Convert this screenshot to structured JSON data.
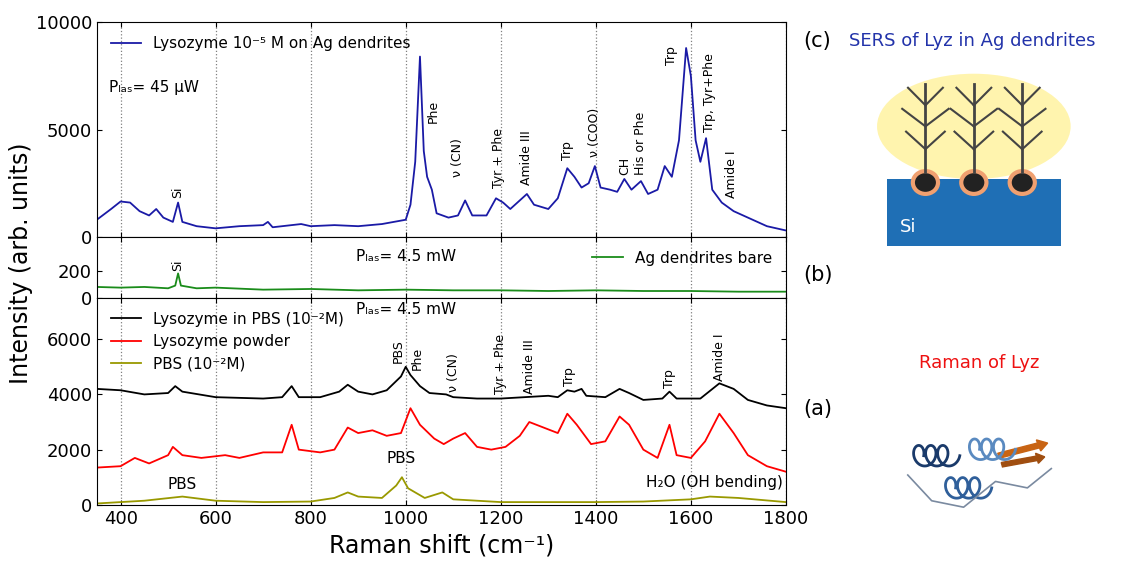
{
  "chart_data": [
    {
      "type": "line",
      "panel_label": "(c)",
      "side_note": "SERS of Lyz in Ag dendrites",
      "schematic_label": "Si",
      "xlim": [
        350,
        1800
      ],
      "xticks": [
        400,
        600,
        800,
        1000,
        1200,
        1400,
        1600,
        1800
      ],
      "ylim": [
        0,
        10000
      ],
      "yticks": [
        0,
        5000,
        10000
      ],
      "grid": "x",
      "legend": "upper left",
      "tick_labels": "y",
      "series": [
        {
          "name": "Lysozyme 10⁻⁵ M on Ag dendrites",
          "color": "#1a1aa6",
          "x": [
            350,
            380,
            400,
            420,
            440,
            460,
            475,
            490,
            510,
            521,
            530,
            560,
            600,
            650,
            700,
            710,
            720,
            780,
            800,
            850,
            900,
            950,
            1000,
            1010,
            1020,
            1030,
            1038,
            1045,
            1055,
            1065,
            1090,
            1110,
            1125,
            1140,
            1170,
            1190,
            1205,
            1220,
            1240,
            1255,
            1270,
            1300,
            1320,
            1340,
            1355,
            1370,
            1385,
            1398,
            1410,
            1430,
            1445,
            1460,
            1475,
            1495,
            1510,
            1530,
            1545,
            1560,
            1575,
            1590,
            1600,
            1610,
            1620,
            1632,
            1645,
            1665,
            1690,
            1720,
            1760,
            1800
          ],
          "values": [
            800,
            1300,
            1650,
            1600,
            1200,
            1000,
            1300,
            900,
            700,
            1600,
            700,
            500,
            400,
            500,
            550,
            700,
            450,
            600,
            500,
            550,
            500,
            600,
            800,
            1500,
            3500,
            8400,
            4000,
            2800,
            2200,
            1100,
            900,
            1000,
            1700,
            1000,
            1000,
            1800,
            1600,
            1300,
            1700,
            2000,
            1500,
            1300,
            1800,
            3200,
            2800,
            2300,
            2500,
            3300,
            2300,
            2200,
            2100,
            2700,
            2200,
            2600,
            2000,
            2200,
            3300,
            2800,
            4500,
            8800,
            7500,
            4500,
            3500,
            4600,
            2200,
            1600,
            1200,
            900,
            500,
            300
          ]
        }
      ],
      "peak_labels": [
        {
          "text": "Si",
          "x": 521,
          "y": 1800
        },
        {
          "text": "Phe",
          "x": 1058,
          "y": 5300
        },
        {
          "text": "ν (CN)",
          "x": 1110,
          "y": 2800
        },
        {
          "text": "Tyr + Phe",
          "x": 1195,
          "y": 2300
        },
        {
          "text": "Amide III",
          "x": 1255,
          "y": 2400
        },
        {
          "text": "Trp",
          "x": 1340,
          "y": 3600
        },
        {
          "text": "ν (COO)",
          "x": 1398,
          "y": 3700
        },
        {
          "text": "CH",
          "x": 1460,
          "y": 2900
        },
        {
          "text": "His or Phe",
          "x": 1495,
          "y": 2900
        },
        {
          "text": "Trp",
          "x": 1560,
          "y": 8000
        },
        {
          "text": "Trp, Tyr+Phe",
          "x": 1640,
          "y": 4900
        },
        {
          "text": "Amide I",
          "x": 1685,
          "y": 1800
        }
      ],
      "annotations": [
        {
          "text": "Pₗₐₛ= 45 μW",
          "x": 470,
          "y": 6600
        }
      ]
    },
    {
      "type": "line",
      "panel_label": "(b)",
      "ylabel": "Intensity (arb. units)",
      "xlim": [
        350,
        1800
      ],
      "xticks": [
        400,
        600,
        800,
        1000,
        1200,
        1400,
        1600,
        1800
      ],
      "ylim": [
        0,
        450
      ],
      "yticks": [
        0,
        200
      ],
      "grid": "x",
      "legend": "upper right",
      "tick_labels": "y",
      "series": [
        {
          "name": "Ag dendrites bare",
          "color": "#1a8c1a",
          "x": [
            350,
            400,
            450,
            500,
            515,
            521,
            527,
            560,
            600,
            700,
            800,
            900,
            1000,
            1100,
            1200,
            1300,
            1400,
            1500,
            1600,
            1700,
            1800
          ],
          "values": [
            80,
            75,
            80,
            70,
            90,
            180,
            90,
            70,
            75,
            60,
            65,
            55,
            60,
            55,
            55,
            50,
            55,
            50,
            50,
            45,
            45
          ]
        }
      ],
      "peak_labels": [
        {
          "text": "Si",
          "x": 521,
          "y": 200
        }
      ],
      "annotations": [
        {
          "text": "Pₗₐₛ= 4.5 mW",
          "x": 1000,
          "y": 250
        }
      ]
    },
    {
      "type": "line",
      "panel_label": "(a)",
      "side_note": "Raman of Lyz",
      "xlabel": "Raman shift (cm⁻¹)",
      "xlim": [
        350,
        1800
      ],
      "xticks": [
        400,
        600,
        800,
        1000,
        1200,
        1400,
        1600,
        1800
      ],
      "ylim": [
        0,
        7500
      ],
      "yticks": [
        0,
        2000,
        4000,
        6000
      ],
      "grid": "x",
      "legend": "upper left",
      "series": [
        {
          "name": "Lysozyme in PBS (10⁻²M)",
          "color": "#000000",
          "x": [
            350,
            400,
            450,
            500,
            515,
            530,
            600,
            700,
            740,
            760,
            775,
            820,
            860,
            878,
            900,
            930,
            960,
            990,
            1000,
            1010,
            1030,
            1050,
            1085,
            1100,
            1150,
            1200,
            1250,
            1300,
            1320,
            1340,
            1355,
            1370,
            1380,
            1420,
            1450,
            1470,
            1500,
            1540,
            1555,
            1570,
            1620,
            1660,
            1690,
            1720,
            1760,
            1800
          ],
          "values": [
            4200,
            4150,
            4000,
            4050,
            4300,
            4100,
            3900,
            3850,
            3900,
            4300,
            3900,
            3900,
            4100,
            4350,
            4100,
            4000,
            4150,
            4650,
            5000,
            4700,
            4300,
            4050,
            4000,
            3900,
            3850,
            3850,
            3900,
            3950,
            3900,
            4150,
            4100,
            4200,
            3950,
            3900,
            4200,
            4050,
            3800,
            3850,
            4100,
            3850,
            3850,
            4400,
            4200,
            3800,
            3600,
            3500
          ]
        },
        {
          "name": "Lysozyme powder",
          "color": "#ff0000",
          "x": [
            350,
            400,
            430,
            460,
            500,
            510,
            530,
            570,
            620,
            650,
            700,
            740,
            760,
            775,
            820,
            850,
            878,
            900,
            930,
            960,
            990,
            1010,
            1030,
            1060,
            1080,
            1100,
            1125,
            1150,
            1180,
            1210,
            1240,
            1260,
            1290,
            1320,
            1340,
            1360,
            1390,
            1420,
            1450,
            1470,
            1500,
            1530,
            1555,
            1570,
            1600,
            1630,
            1660,
            1690,
            1720,
            1760,
            1800
          ],
          "values": [
            1350,
            1400,
            1700,
            1500,
            1800,
            2100,
            1800,
            1700,
            1800,
            1700,
            1900,
            1900,
            2900,
            2000,
            1900,
            2000,
            2800,
            2600,
            2700,
            2500,
            2600,
            3500,
            2900,
            2400,
            2200,
            2400,
            2600,
            2100,
            2000,
            2100,
            2500,
            3000,
            2800,
            2600,
            3300,
            2900,
            2200,
            2300,
            3200,
            2900,
            2000,
            1700,
            2900,
            1800,
            1700,
            2300,
            3300,
            2600,
            1800,
            1400,
            1200
          ]
        },
        {
          "name": "PBS (10⁻²M)",
          "color": "#999900",
          "x": [
            350,
            450,
            530,
            600,
            700,
            800,
            850,
            878,
            900,
            950,
            980,
            992,
            1005,
            1040,
            1077,
            1100,
            1200,
            1300,
            1400,
            1500,
            1600,
            1640,
            1700,
            1800
          ],
          "values": [
            50,
            150,
            300,
            150,
            100,
            120,
            250,
            450,
            300,
            250,
            700,
            1000,
            600,
            250,
            450,
            200,
            100,
            100,
            100,
            120,
            200,
            300,
            250,
            100
          ]
        }
      ],
      "peak_labels": [
        {
          "text": "PBS",
          "x": 985,
          "y": 5150
        },
        {
          "text": "Phe",
          "x": 1025,
          "y": 4900
        },
        {
          "text": "ν (CN)",
          "x": 1100,
          "y": 4100
        },
        {
          "text": "Tyr + Phe",
          "x": 1200,
          "y": 4000
        },
        {
          "text": "Amide III",
          "x": 1260,
          "y": 4000
        },
        {
          "text": "Trp",
          "x": 1345,
          "y": 4300
        },
        {
          "text": "Trp",
          "x": 1555,
          "y": 4250
        },
        {
          "text": "Amide I",
          "x": 1660,
          "y": 4500
        }
      ],
      "annotations": [
        {
          "text": "Pₗₐₛ= 4.5 mW",
          "x": 1000,
          "y": 6800
        },
        {
          "text": "PBS",
          "x": 530,
          "y": 450
        },
        {
          "text": "PBS",
          "x": 990,
          "y": 1400
        },
        {
          "text": "H₂O (OH bending)",
          "x": 1650,
          "y": 550
        }
      ]
    }
  ]
}
